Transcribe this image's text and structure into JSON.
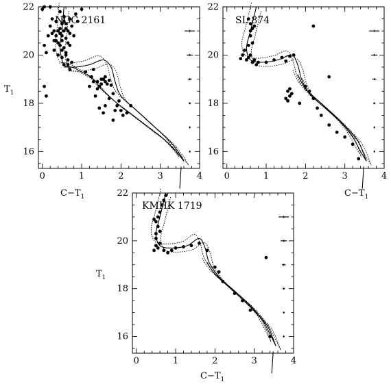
{
  "chart_data": [
    {
      "type": "scatter",
      "title": "NGC 2161",
      "xlabel": "C−T",
      "xlabel_sub": "1",
      "ylabel": "T",
      "ylabel_sub": "1",
      "xlim": [
        -0.1,
        4
      ],
      "ylim": [
        22,
        15.3
      ],
      "xticks": [
        "0",
        "1",
        "2",
        "3",
        "4"
      ],
      "yticks": [
        "16",
        "18",
        "20",
        "22"
      ],
      "grid": false,
      "isochrone": [
        [
          0.55,
          22.0
        ],
        [
          0.5,
          21.0
        ],
        [
          0.45,
          20.3
        ],
        [
          0.55,
          19.6
        ],
        [
          0.8,
          19.5
        ],
        [
          1.2,
          19.6
        ],
        [
          1.55,
          19.8
        ],
        [
          1.75,
          19.5
        ],
        [
          1.85,
          18.9
        ],
        [
          2.0,
          18.3
        ],
        [
          2.4,
          17.7
        ],
        [
          2.8,
          17.1
        ],
        [
          3.2,
          16.5
        ],
        [
          3.45,
          16.0
        ],
        [
          3.6,
          15.6
        ]
      ],
      "isochrone_upper": [
        [
          0.55,
          19.5
        ],
        [
          0.75,
          19.5
        ],
        [
          1.0,
          19.3
        ],
        [
          1.3,
          19.0
        ],
        [
          1.5,
          18.6
        ],
        [
          1.9,
          18.0
        ],
        [
          2.3,
          17.5
        ],
        [
          2.7,
          17.0
        ],
        [
          3.1,
          16.5
        ],
        [
          3.4,
          16.0
        ],
        [
          3.6,
          15.6
        ]
      ],
      "stars": [
        [
          0.05,
          18.7
        ],
        [
          0.1,
          18.3
        ],
        [
          0.0,
          21.9
        ],
        [
          0.05,
          22.0
        ],
        [
          0.2,
          22.0
        ],
        [
          0.1,
          20.1
        ],
        [
          0.05,
          20.4
        ],
        [
          0.15,
          20.8
        ],
        [
          0.2,
          21.2
        ],
        [
          0.25,
          21.5
        ],
        [
          0.3,
          21.0
        ],
        [
          0.35,
          20.6
        ],
        [
          0.3,
          20.2
        ],
        [
          0.4,
          20.0
        ],
        [
          0.45,
          20.9
        ],
        [
          0.5,
          21.3
        ],
        [
          0.55,
          21.6
        ],
        [
          0.6,
          21.1
        ],
        [
          0.45,
          21.8
        ],
        [
          0.35,
          21.4
        ],
        [
          0.4,
          20.5
        ],
        [
          0.55,
          20.3
        ],
        [
          0.6,
          20.7
        ],
        [
          0.65,
          21.0
        ],
        [
          0.7,
          21.5
        ],
        [
          0.75,
          21.2
        ],
        [
          0.8,
          20.8
        ],
        [
          0.85,
          21.7
        ],
        [
          0.9,
          21.4
        ],
        [
          1.0,
          21.9
        ],
        [
          0.5,
          19.9
        ],
        [
          0.55,
          19.6
        ],
        [
          0.6,
          20.1
        ],
        [
          0.65,
          19.8
        ],
        [
          0.7,
          20.4
        ],
        [
          0.5,
          20.6
        ],
        [
          0.45,
          21.1
        ],
        [
          0.55,
          21.0
        ],
        [
          0.6,
          21.3
        ],
        [
          0.65,
          20.5
        ],
        [
          0.7,
          20.9
        ],
        [
          0.5,
          20.2
        ],
        [
          0.4,
          21.0
        ],
        [
          0.35,
          20.8
        ],
        [
          0.6,
          20.0
        ],
        [
          0.65,
          19.6
        ],
        [
          0.7,
          19.4
        ],
        [
          0.75,
          19.7
        ],
        [
          0.5,
          20.8
        ],
        [
          0.55,
          21.4
        ],
        [
          0.45,
          20.4
        ],
        [
          0.3,
          20.6
        ],
        [
          0.25,
          20.9
        ],
        [
          1.1,
          19.3
        ],
        [
          1.3,
          19.4
        ],
        [
          1.4,
          18.9
        ],
        [
          1.45,
          18.7
        ],
        [
          1.5,
          18.8
        ],
        [
          1.55,
          19.0
        ],
        [
          1.6,
          18.9
        ],
        [
          1.65,
          18.8
        ],
        [
          1.7,
          18.95
        ],
        [
          1.75,
          18.75
        ],
        [
          1.6,
          19.1
        ],
        [
          1.5,
          19.0
        ],
        [
          1.4,
          18.6
        ],
        [
          1.35,
          18.3
        ],
        [
          1.45,
          17.8
        ],
        [
          1.55,
          17.6
        ],
        [
          1.6,
          17.9
        ],
        [
          1.7,
          18.2
        ],
        [
          1.8,
          18.4
        ],
        [
          1.85,
          17.7
        ],
        [
          1.9,
          17.9
        ],
        [
          1.95,
          18.1
        ],
        [
          2.0,
          17.7
        ],
        [
          2.05,
          17.5
        ],
        [
          2.15,
          17.6
        ],
        [
          2.25,
          17.9
        ],
        [
          1.3,
          18.9
        ],
        [
          1.2,
          18.7
        ],
        [
          1.25,
          19.1
        ],
        [
          1.8,
          17.3
        ]
      ],
      "error_bars": [
        {
          "T1": 16.0,
          "err": 0.02
        },
        {
          "T1": 17.0,
          "err": 0.02
        },
        {
          "T1": 18.0,
          "err": 0.03
        },
        {
          "T1": 19.0,
          "err": 0.05
        },
        {
          "T1": 20.0,
          "err": 0.08
        },
        {
          "T1": 21.0,
          "err": 0.13
        }
      ]
    },
    {
      "type": "scatter",
      "title": "SL 874",
      "xlabel": "C−T",
      "xlabel_sub": "1",
      "ylabel": "",
      "ylabel_sub": "",
      "xlim": [
        -0.1,
        4
      ],
      "ylim": [
        22,
        15.3
      ],
      "xticks": [
        "0",
        "1",
        "2",
        "3",
        "4"
      ],
      "yticks": [
        "16",
        "18",
        "20",
        "22"
      ],
      "grid": false,
      "isochrone": [
        [
          0.75,
          22.0
        ],
        [
          0.6,
          21.0
        ],
        [
          0.5,
          20.3
        ],
        [
          0.6,
          19.8
        ],
        [
          0.9,
          19.7
        ],
        [
          1.3,
          19.8
        ],
        [
          1.65,
          20.0
        ],
        [
          1.8,
          19.6
        ],
        [
          1.9,
          19.0
        ],
        [
          2.1,
          18.4
        ],
        [
          2.5,
          17.8
        ],
        [
          2.9,
          17.2
        ],
        [
          3.2,
          16.6
        ],
        [
          3.4,
          16.0
        ],
        [
          3.55,
          15.6
        ]
      ],
      "isochrone_upper": [
        [
          1.8,
          19.2
        ],
        [
          2.0,
          18.6
        ],
        [
          2.4,
          18.0
        ],
        [
          2.8,
          17.4
        ],
        [
          3.1,
          16.9
        ],
        [
          3.35,
          16.4
        ],
        [
          3.55,
          15.6
        ]
      ],
      "stars": [
        [
          0.5,
          19.8
        ],
        [
          0.55,
          19.9
        ],
        [
          0.6,
          20.0
        ],
        [
          0.65,
          19.7
        ],
        [
          0.7,
          19.8
        ],
        [
          0.75,
          19.6
        ],
        [
          0.8,
          19.7
        ],
        [
          0.55,
          20.4
        ],
        [
          0.6,
          20.8
        ],
        [
          0.65,
          21.1
        ],
        [
          0.6,
          21.3
        ],
        [
          0.55,
          21.5
        ],
        [
          0.7,
          21.2
        ],
        [
          0.6,
          21.0
        ],
        [
          0.65,
          20.5
        ],
        [
          1.0,
          19.7
        ],
        [
          1.2,
          19.8
        ],
        [
          1.4,
          19.9
        ],
        [
          1.5,
          19.75
        ],
        [
          1.6,
          19.95
        ],
        [
          1.7,
          20.0
        ],
        [
          1.5,
          18.2
        ],
        [
          1.55,
          18.5
        ],
        [
          1.6,
          18.3
        ],
        [
          1.65,
          18.4
        ],
        [
          1.55,
          18.1
        ],
        [
          1.6,
          18.6
        ],
        [
          1.85,
          18.0
        ],
        [
          2.0,
          18.7
        ],
        [
          2.1,
          18.5
        ],
        [
          2.2,
          18.2
        ],
        [
          2.3,
          17.8
        ],
        [
          2.4,
          17.5
        ],
        [
          2.6,
          17.1
        ],
        [
          2.8,
          16.8
        ],
        [
          3.0,
          16.6
        ],
        [
          3.2,
          16.3
        ],
        [
          3.35,
          15.7
        ],
        [
          2.6,
          19.1
        ],
        [
          2.2,
          21.2
        ],
        [
          0.35,
          19.85
        ],
        [
          0.4,
          20.0
        ],
        [
          0.45,
          20.2
        ]
      ],
      "error_bars": [
        {
          "T1": 16.0,
          "err": 0.02
        },
        {
          "T1": 17.0,
          "err": 0.02
        },
        {
          "T1": 18.0,
          "err": 0.03
        },
        {
          "T1": 19.0,
          "err": 0.05
        },
        {
          "T1": 20.0,
          "err": 0.08
        },
        {
          "T1": 21.0,
          "err": 0.13
        }
      ]
    },
    {
      "type": "scatter",
      "title": "KMHK 1719",
      "xlabel": "C−T",
      "xlabel_sub": "1",
      "ylabel": "T",
      "ylabel_sub": "1",
      "xlim": [
        -0.1,
        4
      ],
      "ylim": [
        22,
        15.3
      ],
      "xticks": [
        "0",
        "1",
        "2",
        "3",
        "4"
      ],
      "yticks": [
        "16",
        "18",
        "20",
        "22"
      ],
      "grid": false,
      "isochrone": [
        [
          0.75,
          22.0
        ],
        [
          0.6,
          21.0
        ],
        [
          0.5,
          20.3
        ],
        [
          0.6,
          19.8
        ],
        [
          0.9,
          19.7
        ],
        [
          1.3,
          19.8
        ],
        [
          1.6,
          20.1
        ],
        [
          1.75,
          19.7
        ],
        [
          1.85,
          19.1
        ],
        [
          2.1,
          18.5
        ],
        [
          2.5,
          17.9
        ],
        [
          2.9,
          17.3
        ],
        [
          3.2,
          16.7
        ],
        [
          3.4,
          16.1
        ],
        [
          3.55,
          15.6
        ]
      ],
      "isochrone_upper": [
        [
          1.8,
          19.1
        ],
        [
          2.0,
          18.6
        ],
        [
          2.4,
          18.0
        ],
        [
          2.8,
          17.4
        ],
        [
          3.1,
          16.9
        ],
        [
          3.35,
          16.4
        ],
        [
          3.55,
          15.6
        ]
      ],
      "stars": [
        [
          0.45,
          19.6
        ],
        [
          0.5,
          19.8
        ],
        [
          0.55,
          19.7
        ],
        [
          0.6,
          19.9
        ],
        [
          0.7,
          19.6
        ],
        [
          0.8,
          19.5
        ],
        [
          0.9,
          19.6
        ],
        [
          1.0,
          19.7
        ],
        [
          1.2,
          19.75
        ],
        [
          1.4,
          19.8
        ],
        [
          1.6,
          19.9
        ],
        [
          0.5,
          20.3
        ],
        [
          0.55,
          20.6
        ],
        [
          0.5,
          20.8
        ],
        [
          0.45,
          20.9
        ],
        [
          0.55,
          21.0
        ],
        [
          0.6,
          21.2
        ],
        [
          0.65,
          21.5
        ],
        [
          0.7,
          21.7
        ],
        [
          0.75,
          21.9
        ],
        [
          0.6,
          20.4
        ],
        [
          1.8,
          19.6
        ],
        [
          2.0,
          18.9
        ],
        [
          2.1,
          18.7
        ],
        [
          2.2,
          18.3
        ],
        [
          2.5,
          17.8
        ],
        [
          2.7,
          17.5
        ],
        [
          2.9,
          17.1
        ],
        [
          3.3,
          19.3
        ],
        [
          3.4,
          16.0
        ],
        [
          0.5,
          20.1
        ]
      ],
      "error_bars": [
        {
          "T1": 16.0,
          "err": 0.02
        },
        {
          "T1": 17.0,
          "err": 0.02
        },
        {
          "T1": 18.0,
          "err": 0.03
        },
        {
          "T1": 19.0,
          "err": 0.05
        },
        {
          "T1": 20.0,
          "err": 0.08
        },
        {
          "T1": 21.0,
          "err": 0.13
        }
      ]
    }
  ]
}
